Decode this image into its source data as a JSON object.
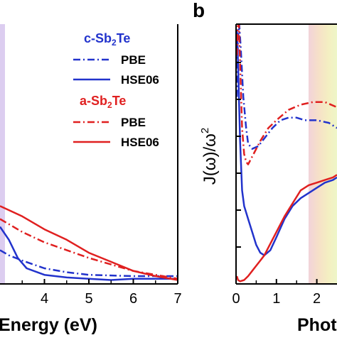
{
  "chart_data": [
    {
      "type": "line",
      "panel_label": "",
      "xlabel": "Energy (eV)",
      "ylabel": "",
      "xlim": [
        3.0,
        7.0
      ],
      "ylim": [
        0,
        1
      ],
      "xticks": [
        "4",
        "5",
        "6",
        "7"
      ],
      "highlight_band": {
        "x": [
          2.55,
          3.0
        ],
        "color": "#d8c8ec"
      },
      "legend": [
        {
          "group": "c-Sb2Te",
          "group_color": "#2233cc",
          "entries": [
            {
              "label": "PBE",
              "style": "dashdot",
              "color": "#2233cc"
            },
            {
              "label": "HSE06",
              "style": "solid",
              "color": "#2233cc"
            }
          ]
        },
        {
          "group": "a-Sb2Te",
          "group_color": "#e02020",
          "entries": [
            {
              "label": "PBE",
              "style": "dashdot",
              "color": "#e02020"
            },
            {
              "label": "HSE06",
              "style": "solid",
              "color": "#e02020"
            }
          ]
        }
      ],
      "series": [
        {
          "name": "c-Sb2Te PBE",
          "color": "#2233cc",
          "style": "dashdot",
          "x": [
            3.0,
            3.2,
            3.5,
            4.0,
            4.5,
            5.0,
            6.0,
            7.0
          ],
          "y": [
            0.13,
            0.11,
            0.09,
            0.06,
            0.045,
            0.035,
            0.03,
            0.03
          ]
        },
        {
          "name": "c-Sb2Te HSE06",
          "color": "#2233cc",
          "style": "solid",
          "x": [
            3.0,
            3.2,
            3.4,
            3.6,
            4.0,
            4.5,
            5.0,
            5.5,
            6.0,
            7.0
          ],
          "y": [
            0.22,
            0.17,
            0.1,
            0.06,
            0.035,
            0.025,
            0.02,
            0.015,
            0.02,
            0.02
          ]
        },
        {
          "name": "a-Sb2Te PBE",
          "color": "#e02020",
          "style": "dashdot",
          "x": [
            3.0,
            3.5,
            4.0,
            4.5,
            5.0,
            5.5,
            6.0,
            6.5,
            7.0
          ],
          "y": [
            0.25,
            0.2,
            0.16,
            0.13,
            0.1,
            0.075,
            0.05,
            0.035,
            0.02
          ]
        },
        {
          "name": "a-Sb2Te HSE06",
          "color": "#e02020",
          "style": "solid",
          "x": [
            3.0,
            3.5,
            4.0,
            4.5,
            5.0,
            5.5,
            6.0,
            6.5,
            7.0
          ],
          "y": [
            0.3,
            0.26,
            0.21,
            0.17,
            0.12,
            0.085,
            0.05,
            0.03,
            0.015
          ]
        }
      ]
    },
    {
      "type": "line",
      "panel_label": "b",
      "xlabel": "Phot",
      "ylabel": "J(ω)/ω",
      "ylabel_sup": "2",
      "xlim": [
        0,
        2.5
      ],
      "ylim": [
        0,
        1
      ],
      "xticks": [
        "0",
        "1",
        "2"
      ],
      "highlight_band": {
        "x": [
          1.65,
          2.5
        ]
      },
      "series": [
        {
          "name": "c-Sb2Te PBE",
          "color": "#2233cc",
          "style": "dashdot",
          "x": [
            0.02,
            0.05,
            0.08,
            0.12,
            0.18,
            0.25,
            0.3,
            0.4,
            0.55,
            0.7,
            0.9,
            1.1,
            1.3,
            1.5,
            1.7,
            2.0,
            2.3,
            2.5
          ],
          "y": [
            0.72,
            0.95,
            1.0,
            0.9,
            0.72,
            0.6,
            0.54,
            0.52,
            0.53,
            0.56,
            0.6,
            0.63,
            0.64,
            0.64,
            0.63,
            0.63,
            0.62,
            0.6
          ]
        },
        {
          "name": "c-Sb2Te HSE06",
          "color": "#2233cc",
          "style": "solid",
          "x": [
            0.02,
            0.05,
            0.1,
            0.15,
            0.2,
            0.3,
            0.4,
            0.5,
            0.6,
            0.7,
            0.85,
            1.0,
            1.2,
            1.4,
            1.6,
            1.8,
            2.0,
            2.2,
            2.4,
            2.5
          ],
          "y": [
            0.98,
            0.85,
            0.55,
            0.36,
            0.3,
            0.25,
            0.2,
            0.15,
            0.12,
            0.11,
            0.13,
            0.18,
            0.25,
            0.3,
            0.33,
            0.35,
            0.37,
            0.39,
            0.4,
            0.41
          ]
        },
        {
          "name": "a-Sb2Te PBE",
          "color": "#e02020",
          "style": "dashdot",
          "x": [
            0.02,
            0.04,
            0.07,
            0.1,
            0.15,
            0.2,
            0.25,
            0.3,
            0.4,
            0.6,
            0.8,
            1.0,
            1.3,
            1.6,
            1.9,
            2.2,
            2.5
          ],
          "y": [
            0.88,
            0.99,
            1.0,
            0.85,
            0.6,
            0.5,
            0.47,
            0.46,
            0.49,
            0.55,
            0.6,
            0.63,
            0.67,
            0.69,
            0.7,
            0.7,
            0.68
          ]
        },
        {
          "name": "a-Sb2Te HSE06",
          "color": "#e02020",
          "style": "solid",
          "x": [
            0.02,
            0.05,
            0.1,
            0.2,
            0.3,
            0.4,
            0.5,
            0.6,
            0.7,
            0.8,
            1.0,
            1.2,
            1.4,
            1.6,
            1.8,
            2.0,
            2.2,
            2.4,
            2.5
          ],
          "y": [
            0.03,
            0.015,
            0.01,
            0.015,
            0.03,
            0.05,
            0.07,
            0.09,
            0.11,
            0.14,
            0.2,
            0.26,
            0.31,
            0.36,
            0.38,
            0.39,
            0.4,
            0.41,
            0.42
          ]
        }
      ]
    }
  ]
}
